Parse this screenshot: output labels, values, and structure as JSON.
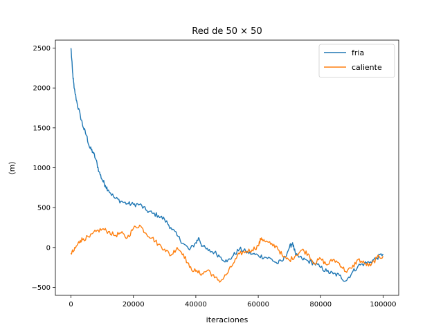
{
  "chart_data": {
    "type": "line",
    "title": "Red de 50 × 50",
    "xlabel": "iteraciones",
    "ylabel": "⟨m⟩",
    "xlim": [
      -5000,
      105000
    ],
    "ylim": [
      -600,
      2600
    ],
    "xticks": [
      0,
      20000,
      40000,
      60000,
      80000,
      100000
    ],
    "yticks": [
      -500,
      0,
      500,
      1000,
      1500,
      2000,
      2500
    ],
    "grid": false,
    "legend_position": "top-right",
    "series": [
      {
        "name": "fria",
        "color": "#1f77b4",
        "x": [
          0,
          500,
          1000,
          2000,
          3000,
          4000,
          5000,
          6000,
          7000,
          8000,
          9000,
          10000,
          11000,
          12000,
          14000,
          16000,
          18000,
          20000,
          22000,
          24000,
          26000,
          28000,
          30000,
          32000,
          34000,
          36000,
          38000,
          40000,
          41000,
          42000,
          44000,
          46000,
          48000,
          50000,
          52000,
          54000,
          56000,
          58000,
          60000,
          62000,
          64000,
          66000,
          68000,
          70000,
          71000,
          72000,
          74000,
          76000,
          78000,
          80000,
          82000,
          84000,
          86000,
          88000,
          90000,
          92000,
          94000,
          96000,
          98000,
          100000
        ],
        "y": [
          2500,
          2200,
          2000,
          1800,
          1650,
          1500,
          1400,
          1250,
          1200,
          1100,
          950,
          850,
          780,
          720,
          620,
          580,
          550,
          540,
          540,
          470,
          430,
          400,
          350,
          250,
          150,
          50,
          -30,
          60,
          120,
          20,
          -40,
          -60,
          -120,
          -180,
          -100,
          -20,
          -50,
          -80,
          -100,
          -120,
          -140,
          -200,
          -160,
          0,
          60,
          -100,
          -140,
          -170,
          -200,
          -250,
          -300,
          -330,
          -350,
          -420,
          -320,
          -230,
          -200,
          -180,
          -130,
          -80
        ]
      },
      {
        "name": "caliente",
        "color": "#ff7f0e",
        "x": [
          0,
          1000,
          2000,
          3000,
          4000,
          6000,
          8000,
          10000,
          12000,
          14000,
          16000,
          18000,
          20000,
          22000,
          24000,
          26000,
          28000,
          30000,
          32000,
          34000,
          36000,
          38000,
          40000,
          42000,
          44000,
          46000,
          48000,
          50000,
          52000,
          54000,
          56000,
          58000,
          60000,
          61000,
          62000,
          64000,
          66000,
          68000,
          70000,
          72000,
          74000,
          76000,
          78000,
          80000,
          82000,
          84000,
          86000,
          88000,
          90000,
          92000,
          94000,
          96000,
          98000,
          100000
        ],
        "y": [
          -70,
          -40,
          30,
          90,
          110,
          130,
          200,
          230,
          200,
          150,
          180,
          120,
          240,
          280,
          180,
          120,
          40,
          -20,
          -100,
          0,
          -80,
          -250,
          -300,
          -330,
          -280,
          -380,
          -420,
          -330,
          -200,
          -80,
          -50,
          -30,
          20,
          120,
          80,
          40,
          10,
          -120,
          -160,
          -100,
          -30,
          -80,
          -200,
          -140,
          -220,
          -150,
          -200,
          -300,
          -260,
          -150,
          -200,
          -230,
          -130,
          -110
        ]
      }
    ]
  }
}
